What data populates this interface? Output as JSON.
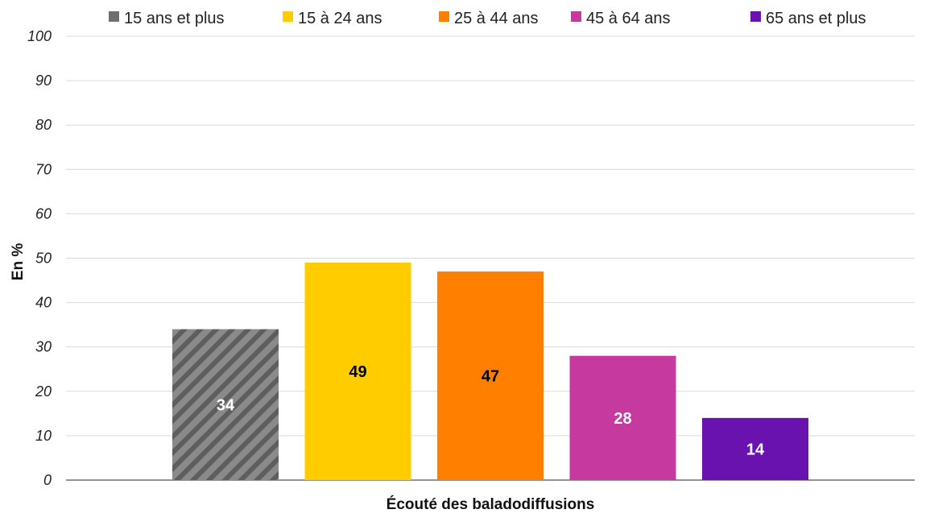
{
  "chart_data": {
    "type": "bar",
    "categories": [
      "Écouté des baladodiffusions"
    ],
    "series": [
      {
        "name": "15 ans et plus",
        "values": [
          34
        ],
        "color": "#808080",
        "pattern": "diagonal-stripes",
        "label_color": "#ffffff"
      },
      {
        "name": "15 à 24 ans",
        "values": [
          49
        ],
        "color": "#FFCC00",
        "label_color": "#000000"
      },
      {
        "name": "25 à 44 ans",
        "values": [
          47
        ],
        "color": "#FF8000",
        "label_color": "#000000"
      },
      {
        "name": "45 à 64 ans",
        "values": [
          28
        ],
        "color": "#C63AA0",
        "label_color": "#ffffff"
      },
      {
        "name": "65 ans et plus",
        "values": [
          14
        ],
        "color": "#6A12B0",
        "label_color": "#ffffff"
      }
    ],
    "value_labels": [
      "34",
      "49",
      "47",
      "28",
      "14"
    ],
    "xlabel": "Écouté des baladodiffusions",
    "ylabel": "En %",
    "ylim": [
      0,
      100
    ],
    "yticks": [
      "0",
      "10",
      "20",
      "30",
      "40",
      "50",
      "60",
      "70",
      "80",
      "90",
      "100"
    ],
    "grid": true,
    "legend_position": "top"
  }
}
